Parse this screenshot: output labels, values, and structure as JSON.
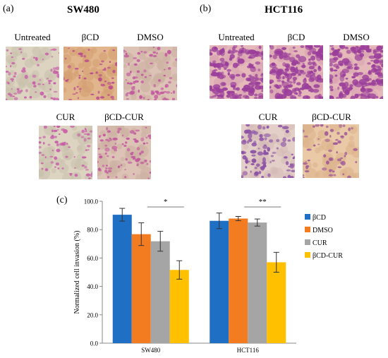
{
  "panels": {
    "a": {
      "label": "(a)",
      "title": "SW480",
      "images": [
        {
          "label": "Untreated",
          "stain": "sw-light"
        },
        {
          "label": "βCD",
          "stain": "sw-warm"
        },
        {
          "label": "DMSO",
          "stain": "sw-mid"
        },
        {
          "label": "CUR",
          "stain": "sw-light"
        },
        {
          "label": "βCD-CUR",
          "stain": "sw-mid"
        }
      ]
    },
    "b": {
      "label": "(b)",
      "title": "HCT116",
      "images": [
        {
          "label": "Untreated",
          "stain": "hct-dense"
        },
        {
          "label": "βCD",
          "stain": "hct-dense"
        },
        {
          "label": "DMSO",
          "stain": "hct-dense"
        },
        {
          "label": "CUR",
          "stain": "hct-mid"
        },
        {
          "label": "βCD-CUR",
          "stain": "hct-sparse"
        }
      ]
    },
    "c": {
      "label": "(c)"
    }
  },
  "colors": {
    "βCD": "#1F6FC5",
    "DMSO": "#F47C20",
    "CUR": "#A5A5A5",
    "βCD-CUR": "#FFC000"
  },
  "chart_data": {
    "type": "bar",
    "ylabel": "Normalized cell invasion (%)",
    "ylim": [
      0,
      100
    ],
    "yticks": [
      "0.0",
      "20.0",
      "40.0",
      "60.0",
      "80.0",
      "100.0"
    ],
    "categories": [
      "SW480",
      "HCT116"
    ],
    "series": [
      {
        "name": "βCD",
        "values": [
          90.5,
          86.2
        ],
        "errors": [
          4.5,
          5.5
        ]
      },
      {
        "name": "DMSO",
        "values": [
          76.8,
          87.8
        ],
        "errors": [
          8.0,
          1.5
        ]
      },
      {
        "name": "CUR",
        "values": [
          71.8,
          85.0
        ],
        "errors": [
          7.0,
          2.5
        ]
      },
      {
        "name": "βCD-CUR",
        "values": [
          51.6,
          57.0
        ],
        "errors": [
          6.5,
          7.0
        ]
      }
    ],
    "significance": [
      "*",
      "**"
    ],
    "legend_position": "right"
  }
}
